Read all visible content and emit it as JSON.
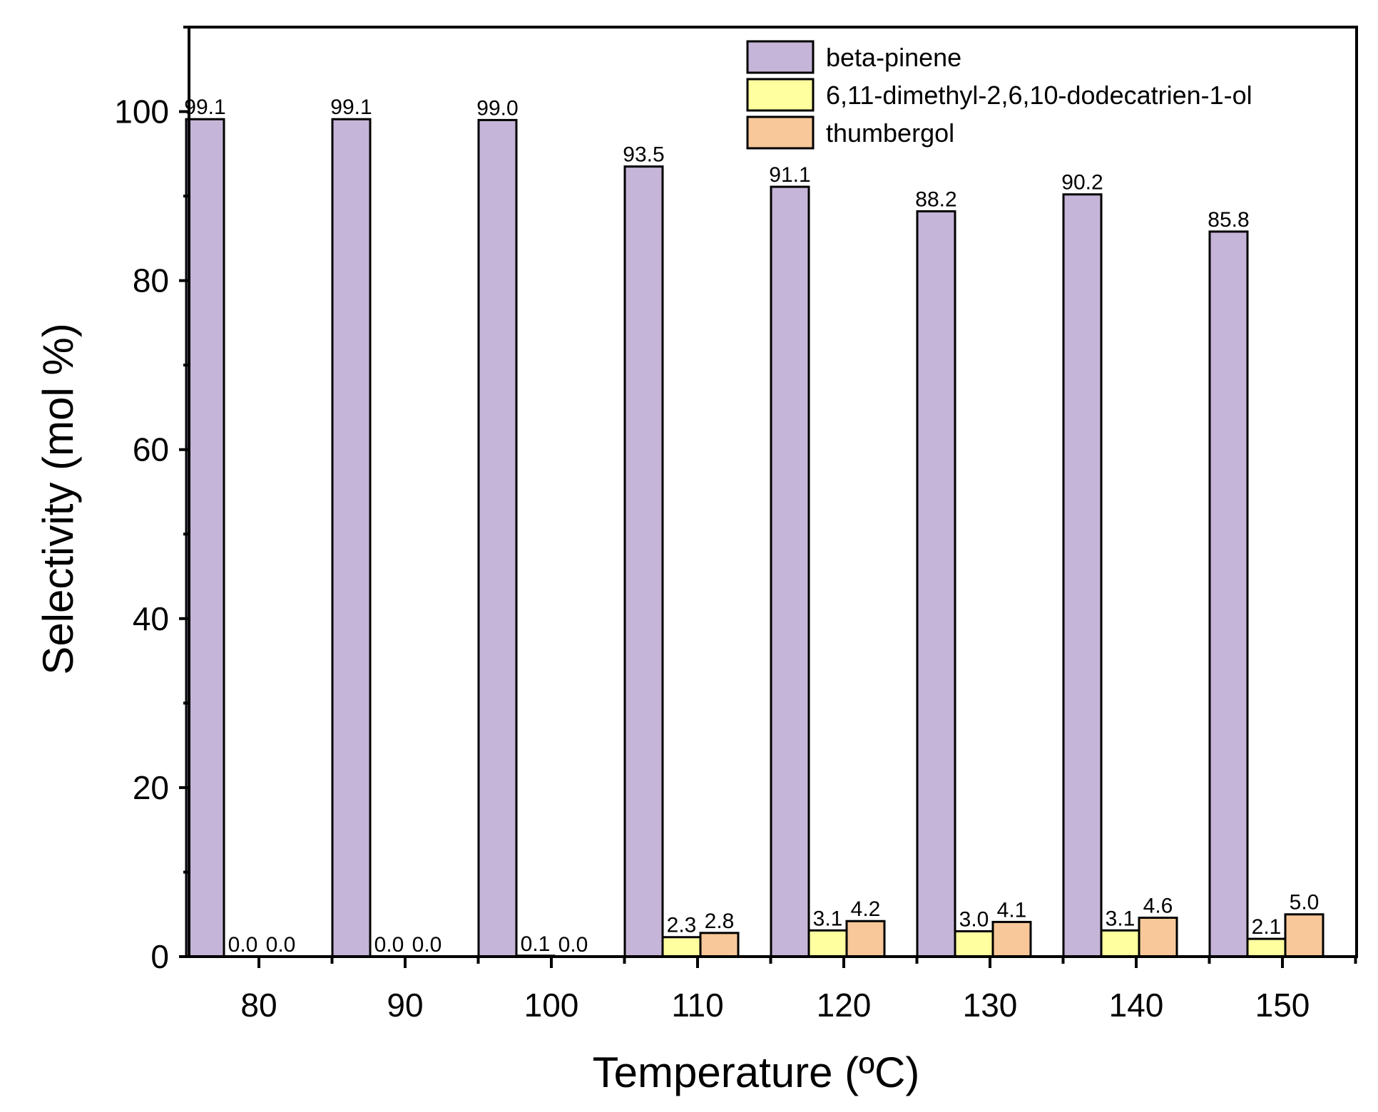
{
  "chart_data": {
    "type": "bar",
    "title": "",
    "xlabel": "Temperature (ºC)",
    "ylabel": "Selectivity (mol %)",
    "categories": [
      "80",
      "90",
      "100",
      "110",
      "120",
      "130",
      "140",
      "150"
    ],
    "ylim": [
      0,
      110
    ],
    "y_ticks": [
      0,
      20,
      40,
      60,
      80,
      100
    ],
    "y_tick_labels": [
      "0",
      "20",
      "40",
      "60",
      "80",
      "100"
    ],
    "legend_position": "top-right",
    "series": [
      {
        "name": "beta-pinene",
        "color": "#C5B5D8",
        "values": [
          99.1,
          99.1,
          99.0,
          93.5,
          91.1,
          88.2,
          90.2,
          85.8
        ],
        "value_labels": [
          "99.1",
          "99.1",
          "99.0",
          "93.5",
          "91.1",
          "88.2",
          "90.2",
          "85.8"
        ]
      },
      {
        "name": "6,11-dimethyl-2,6,10-dodecatrien-1-ol",
        "color": "#FFFFA0",
        "values": [
          0.0,
          0.0,
          0.1,
          2.3,
          3.1,
          3.0,
          3.1,
          2.1
        ],
        "value_labels": [
          "0.0",
          "0.0",
          "0.1",
          "2.3",
          "3.1",
          "3.0",
          "3.1",
          "2.1"
        ]
      },
      {
        "name": "thumbergol",
        "color": "#F8C89A",
        "values": [
          0.0,
          0.0,
          0.0,
          2.8,
          4.2,
          4.1,
          4.6,
          5.0
        ],
        "value_labels": [
          "0.0",
          "0.0",
          "0.0",
          "2.8",
          "4.2",
          "4.1",
          "4.6",
          "5.0"
        ]
      }
    ]
  }
}
